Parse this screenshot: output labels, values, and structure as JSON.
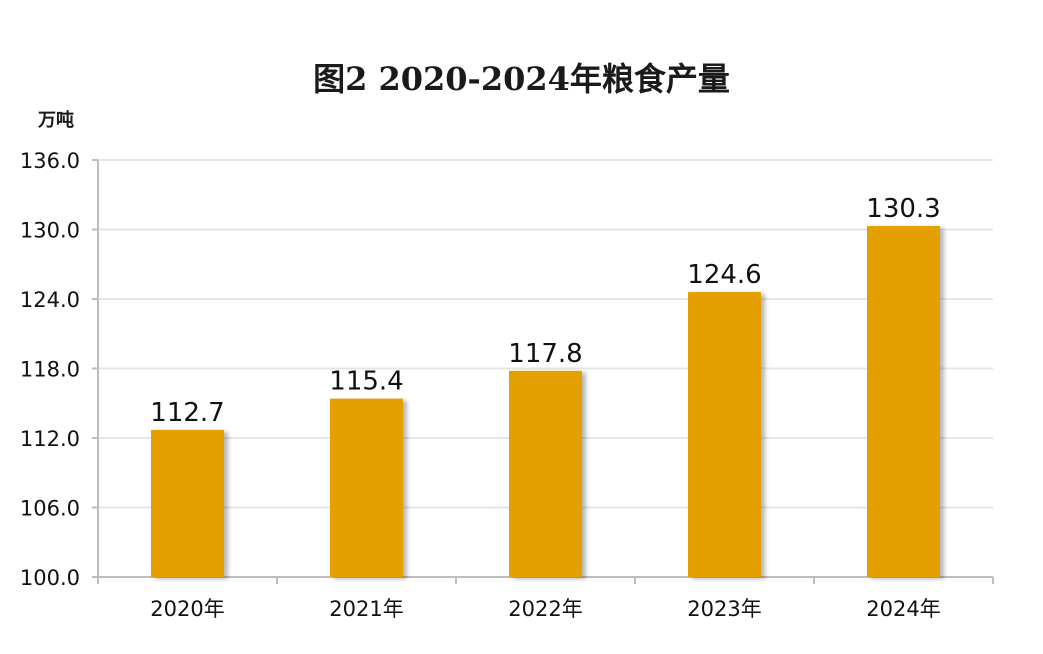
{
  "chart_data": {
    "type": "bar",
    "title": "图2  2020-2024年粮食产量",
    "ylabel": "万吨",
    "xlabel": "",
    "categories": [
      "2020年",
      "2021年",
      "2022年",
      "2023年",
      "2024年"
    ],
    "values": [
      112.7,
      115.4,
      117.8,
      124.6,
      130.3
    ],
    "value_labels": [
      "112.7",
      "115.4",
      "117.8",
      "124.6",
      "130.3"
    ],
    "ylim": [
      100.0,
      136.0
    ],
    "yticks": [
      "100.0",
      "106.0",
      "112.0",
      "118.0",
      "124.0",
      "130.0",
      "136.0"
    ],
    "grid": true,
    "legend": "none",
    "colors": {
      "bar": "#E3A000",
      "grid": "#e6e6e6",
      "axis": "#bdbdbd"
    }
  }
}
